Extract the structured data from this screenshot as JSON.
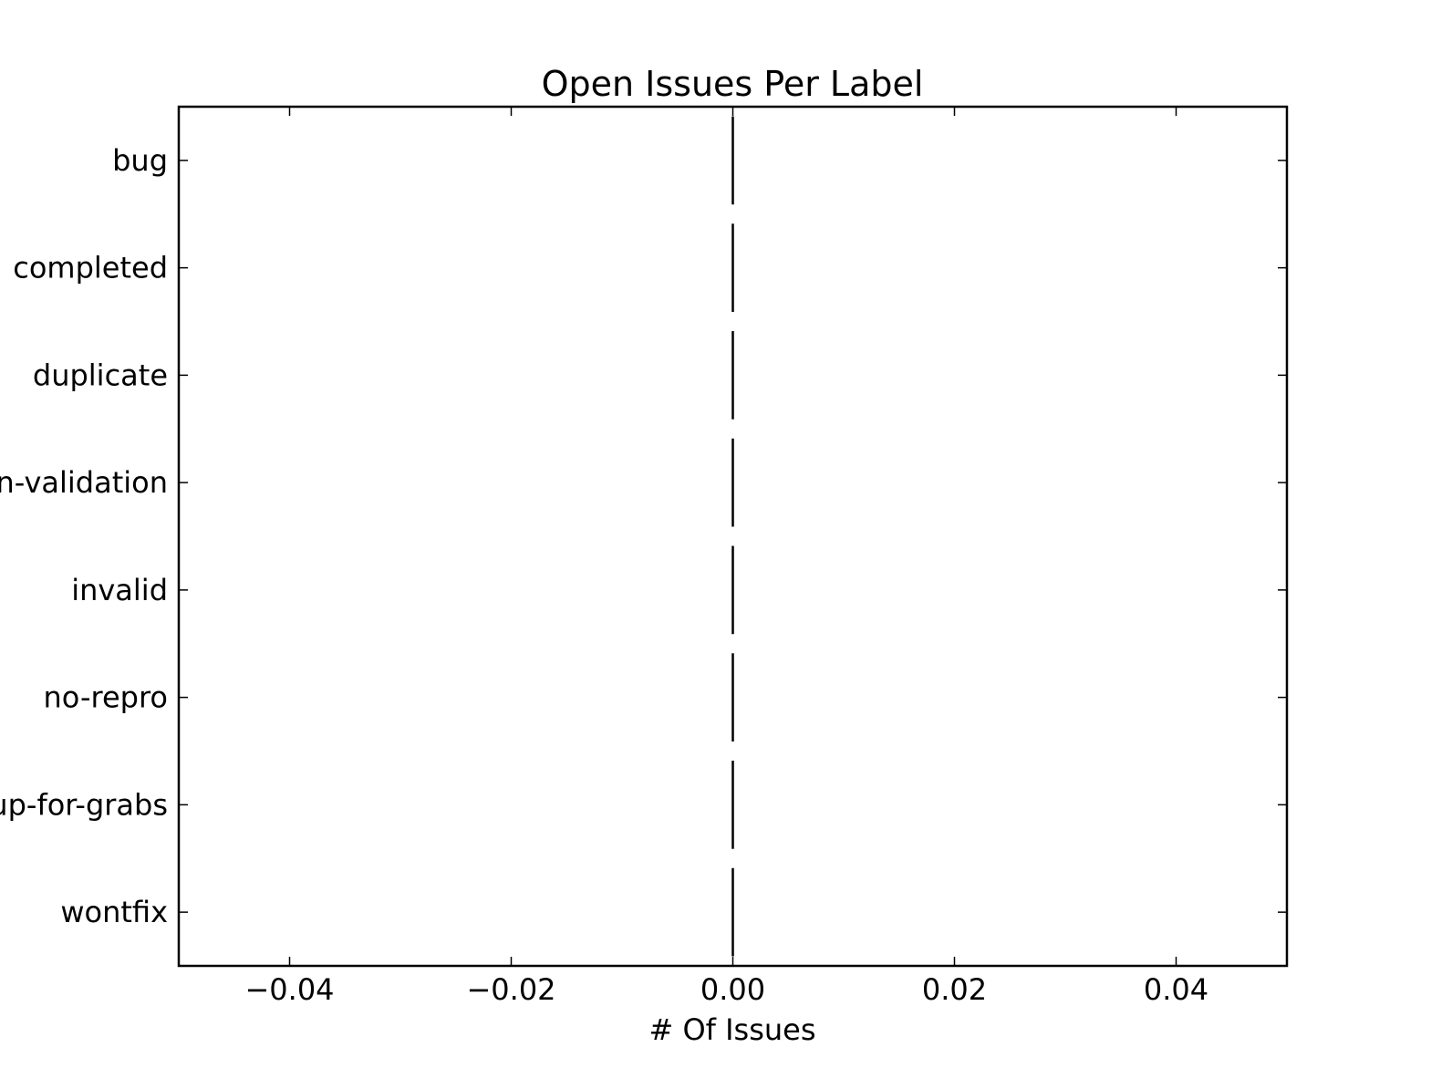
{
  "chart_data": {
    "type": "bar",
    "orientation": "horizontal",
    "title": "Open Issues Per Label",
    "xlabel": "# Of Issues",
    "ylabel": "",
    "categories": [
      "bug",
      "completed",
      "duplicate",
      "in-validation",
      "invalid",
      "no-repro",
      "up-for-grabs",
      "wontfix"
    ],
    "values": [
      0,
      0,
      0,
      0,
      0,
      0,
      0,
      0
    ],
    "xlim": [
      -0.05,
      0.05
    ],
    "xticks": [
      -0.04,
      -0.02,
      0.0,
      0.02,
      0.04
    ],
    "xtick_labels": [
      "−0.04",
      "−0.02",
      "0.00",
      "0.02",
      "0.04"
    ],
    "grid": false,
    "legend": "none",
    "bar_edge_color": "#000000",
    "frame_color": "#000000"
  }
}
